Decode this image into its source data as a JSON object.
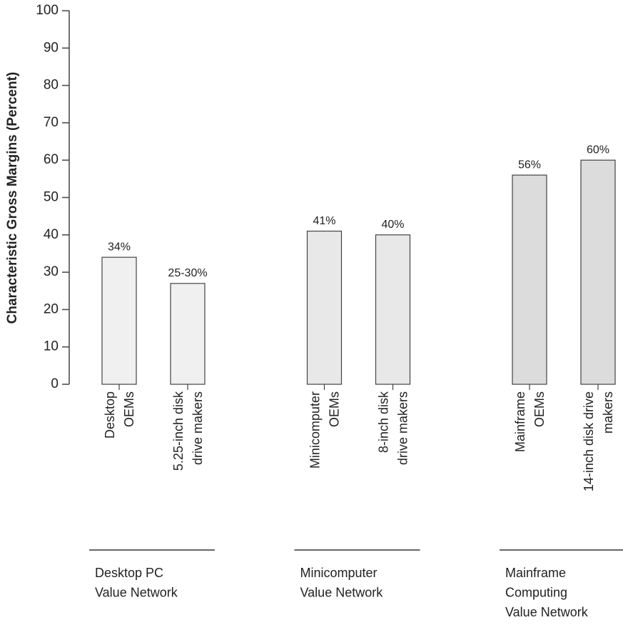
{
  "chart_data": {
    "type": "bar",
    "y_label": "Characteristic Gross Margins (Percent)",
    "categories": [
      [
        "Desktop",
        "OEMs"
      ],
      [
        "5.25-inch disk",
        "drive makers"
      ],
      [
        "Minicomputer",
        "OEMs"
      ],
      [
        "8-inch disk",
        "drive makers"
      ],
      [
        "Mainframe",
        "OEMs"
      ],
      [
        "14-inch disk drive",
        "makers"
      ]
    ],
    "values": [
      34,
      27,
      41,
      40,
      56,
      60
    ],
    "value_labels": [
      "34%",
      "25-30%",
      "41%",
      "40%",
      "56%",
      "60%"
    ],
    "colors": [
      "#f0f0f0",
      "#f0f0f0",
      "#e8e8e8",
      "#e8e8e8",
      "#dcdcdc",
      "#dcdcdc"
    ],
    "groups": [
      [
        "Desktop PC",
        "Value Network"
      ],
      [
        "Minicomputer",
        "Value Network"
      ],
      [
        "Mainframe",
        "Computing",
        "Value Network"
      ]
    ],
    "ylim": [
      0,
      100
    ],
    "yticks": [
      0,
      10,
      20,
      30,
      40,
      50,
      60,
      70,
      80,
      90,
      100
    ],
    "grid": false
  }
}
